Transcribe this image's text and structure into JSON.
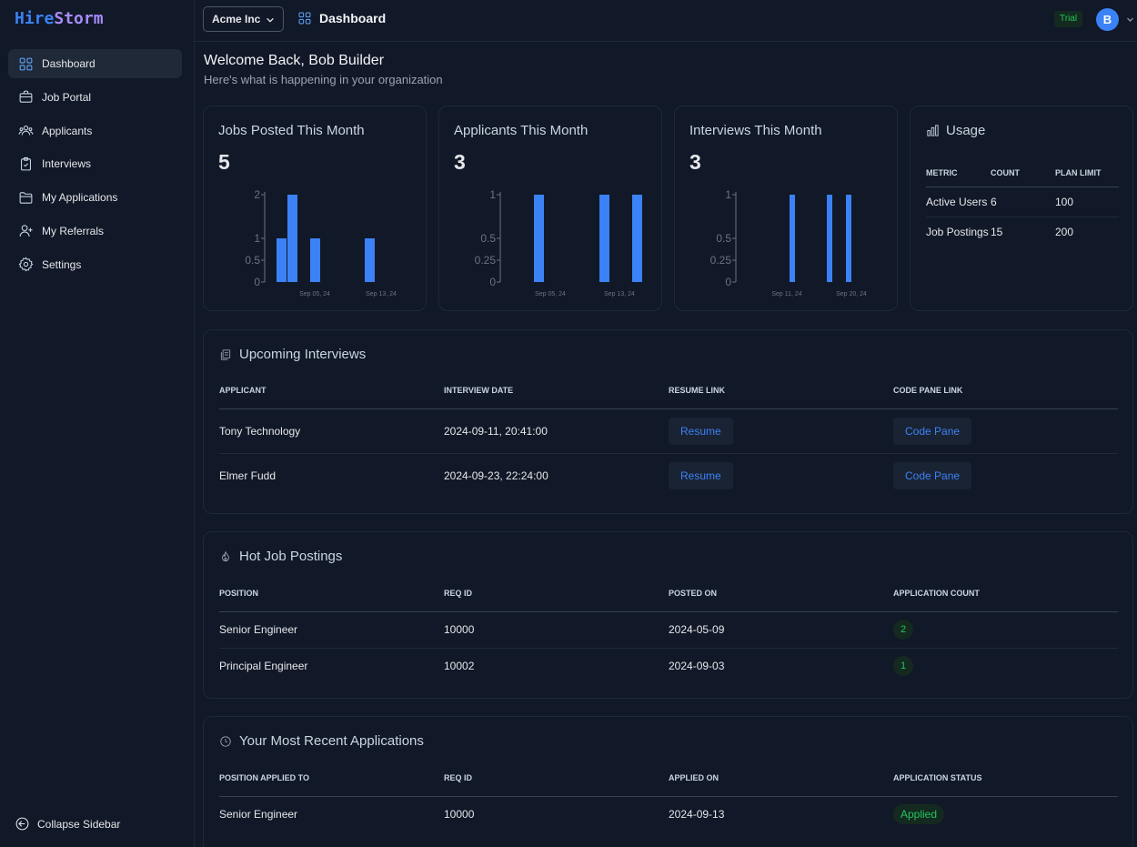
{
  "brand": {
    "logo_part1": "Hire",
    "logo_part2": "Storm"
  },
  "sidebar": {
    "items": [
      {
        "label": "Dashboard",
        "icon": "grid-icon"
      },
      {
        "label": "Job Portal",
        "icon": "briefcase-icon"
      },
      {
        "label": "Applicants",
        "icon": "users-icon"
      },
      {
        "label": "Interviews",
        "icon": "clipboard-icon"
      },
      {
        "label": "My Applications",
        "icon": "folder-icon"
      },
      {
        "label": "My Referrals",
        "icon": "user-plus-icon"
      },
      {
        "label": "Settings",
        "icon": "gear-icon"
      }
    ],
    "collapse_label": "Collapse Sidebar"
  },
  "header": {
    "org": "Acme Inc",
    "page_title": "Dashboard",
    "plan_badge": "Trial",
    "avatar_initial": "B"
  },
  "welcome": {
    "title": "Welcome Back, Bob Builder",
    "subtitle": "Here's what is happening in your organization"
  },
  "stats": [
    {
      "title": "Jobs Posted This Month",
      "value": "5",
      "chart_data": {
        "type": "bar",
        "ylim": [
          0,
          2
        ],
        "yticks": [
          "0",
          "0.5",
          "1",
          "2"
        ],
        "xticks": [
          "Sep 05, 24",
          "Sep 13, 24"
        ],
        "values": [
          1,
          2,
          1,
          1
        ]
      }
    },
    {
      "title": "Applicants This Month",
      "value": "3",
      "chart_data": {
        "type": "bar",
        "ylim": [
          0,
          1
        ],
        "yticks": [
          "0",
          "0.25",
          "0.5",
          "1"
        ],
        "xticks": [
          "Sep 05, 24",
          "Sep 13, 24"
        ],
        "values": [
          1,
          1,
          1
        ]
      }
    },
    {
      "title": "Interviews This Month",
      "value": "3",
      "chart_data": {
        "type": "bar",
        "ylim": [
          0,
          1
        ],
        "yticks": [
          "0",
          "0.25",
          "0.5",
          "1"
        ],
        "xticks": [
          "Sep 11, 24",
          "Sep 20, 24"
        ],
        "values": [
          1,
          1,
          1
        ]
      }
    }
  ],
  "usage": {
    "title": "Usage",
    "headers": [
      "METRIC",
      "COUNT",
      "PLAN LIMIT"
    ],
    "rows": [
      [
        "Active Users",
        "6",
        "100"
      ],
      [
        "Job Postings",
        "15",
        "200"
      ]
    ]
  },
  "interviews": {
    "title": "Upcoming Interviews",
    "headers": [
      "APPLICANT",
      "INTERVIEW DATE",
      "RESUME LINK",
      "CODE PANE LINK"
    ],
    "rows": [
      {
        "applicant": "Tony Technology",
        "date": "2024-09-11, 20:41:00",
        "resume": "Resume",
        "code": "Code Pane"
      },
      {
        "applicant": "Elmer Fudd",
        "date": "2024-09-23, 22:24:00",
        "resume": "Resume",
        "code": "Code Pane"
      }
    ]
  },
  "hot_jobs": {
    "title": "Hot Job Postings",
    "headers": [
      "POSITION",
      "REQ ID",
      "POSTED ON",
      "APPLICATION COUNT"
    ],
    "rows": [
      {
        "position": "Senior Engineer",
        "req": "10000",
        "posted": "2024-05-09",
        "count": "2"
      },
      {
        "position": "Principal Engineer",
        "req": "10002",
        "posted": "2024-09-03",
        "count": "1"
      }
    ]
  },
  "recent_apps": {
    "title": "Your Most Recent Applications",
    "headers": [
      "POSITION APPLIED TO",
      "REQ ID",
      "APPLIED ON",
      "APPLICATION STATUS"
    ],
    "rows": [
      {
        "position": "Senior Engineer",
        "req": "10000",
        "applied": "2024-09-13",
        "status": "Applied"
      }
    ]
  },
  "colors": {
    "accent": "#3b82f6",
    "success": "#22c55e",
    "background": "#111827"
  }
}
